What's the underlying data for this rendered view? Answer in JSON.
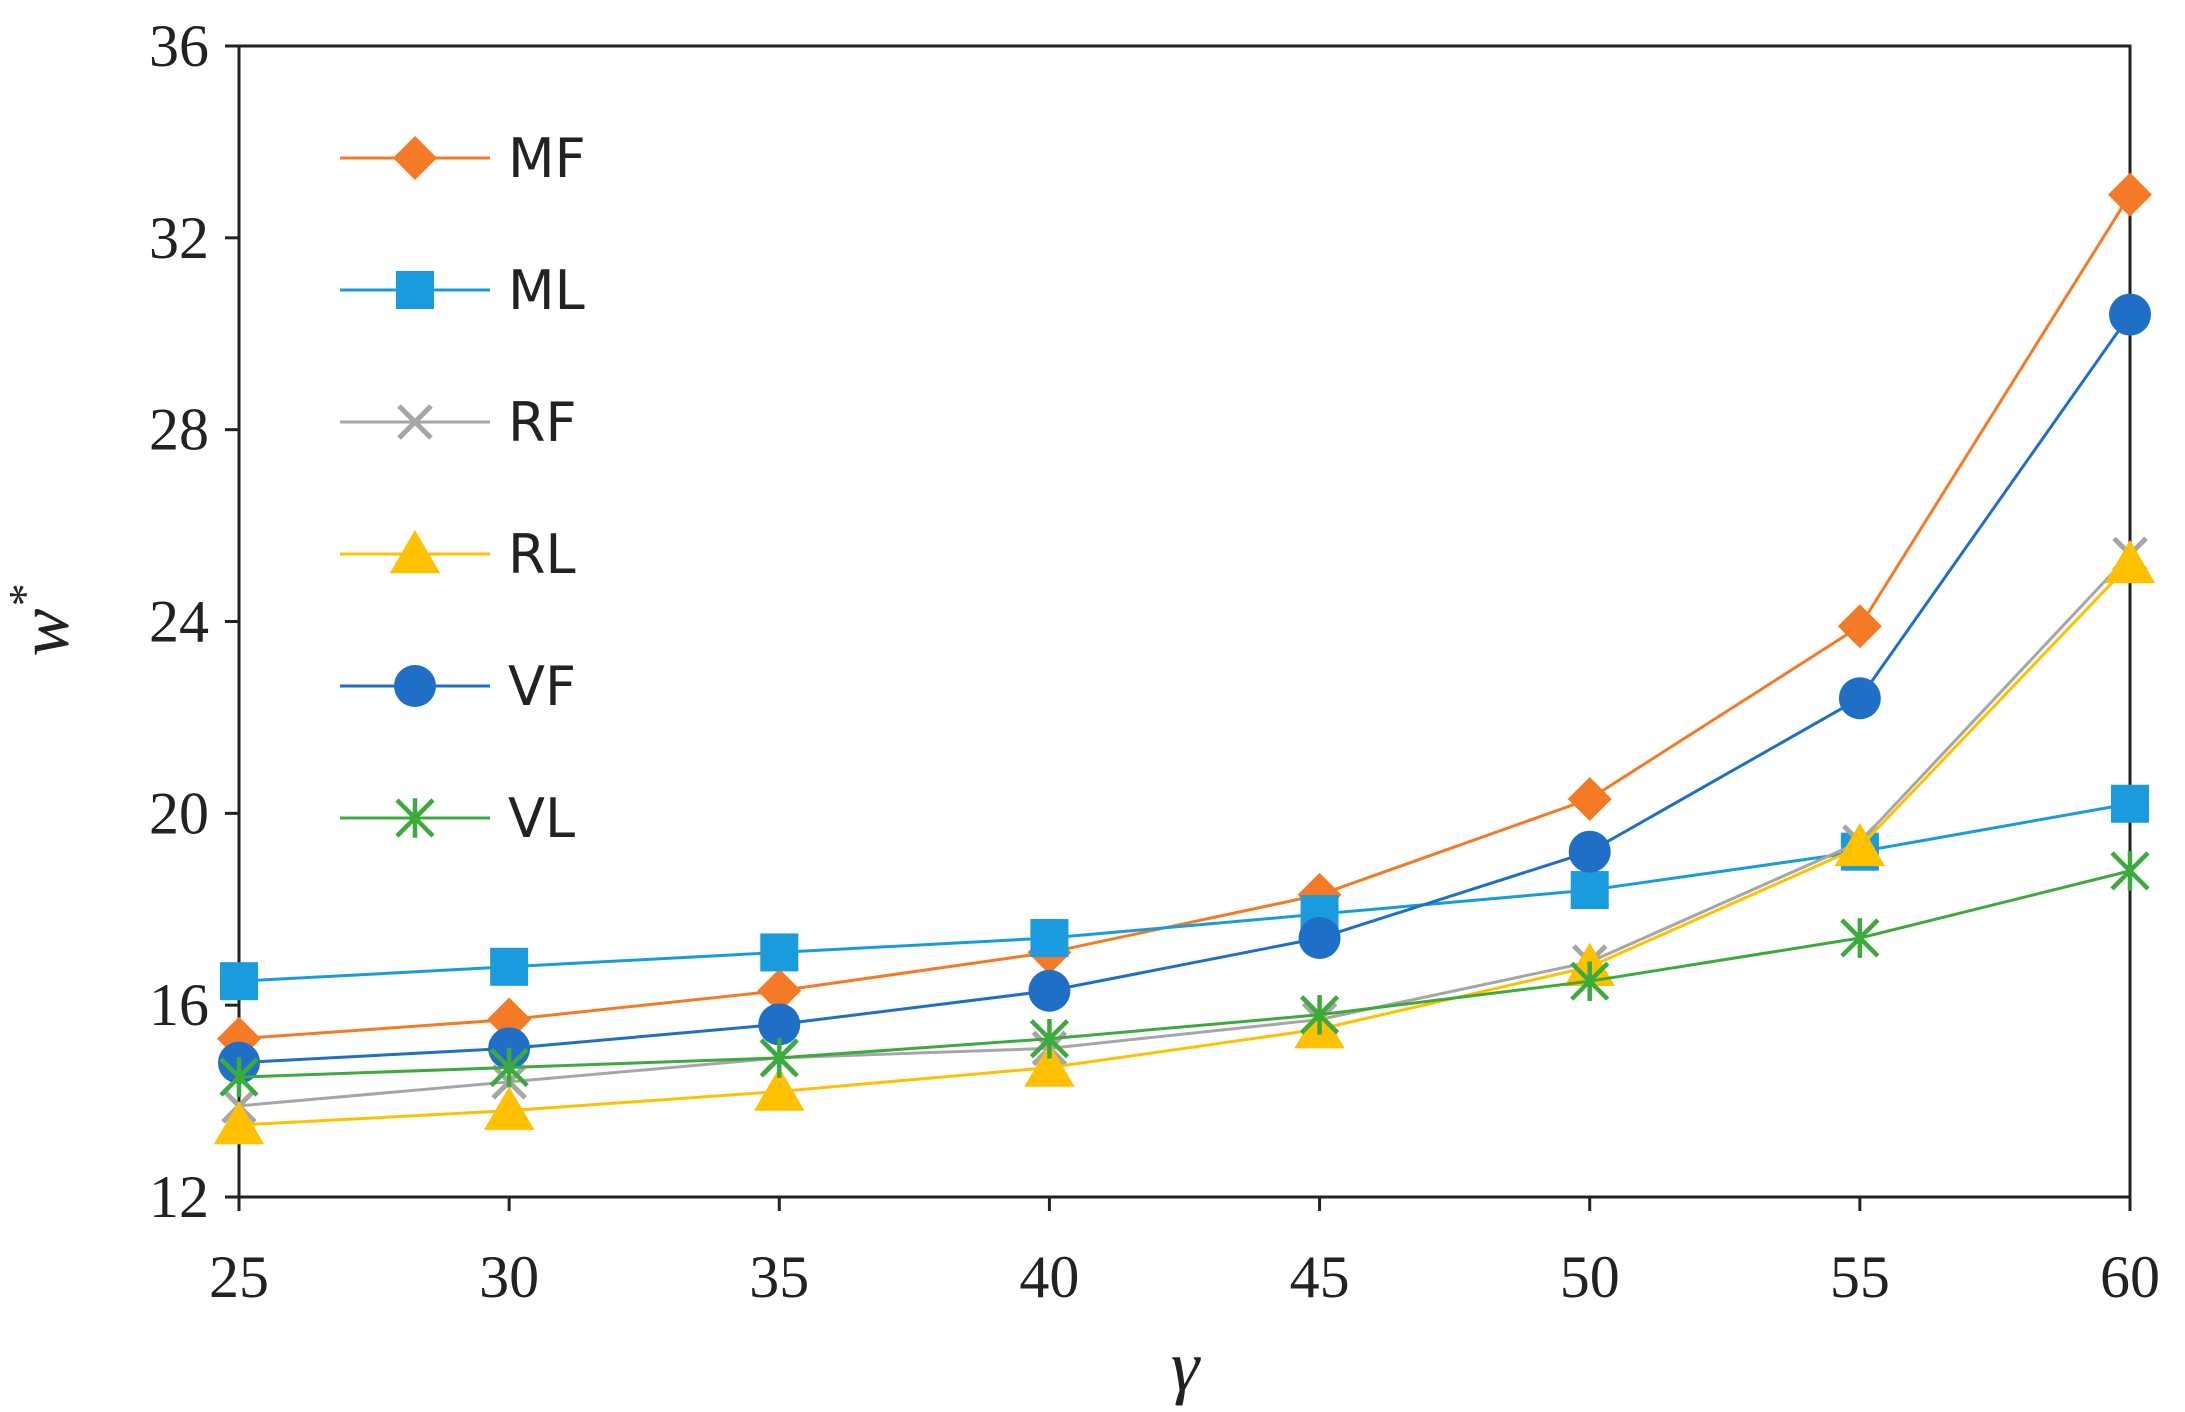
{
  "chart_data": {
    "type": "line",
    "title": "",
    "xlabel": "γ",
    "ylabel": "w",
    "ylabel_superscript": "*",
    "x": [
      25,
      30,
      35,
      40,
      45,
      50,
      55,
      60
    ],
    "xlim": [
      25,
      60
    ],
    "ylim": [
      12,
      36
    ],
    "yticks": [
      12,
      16,
      20,
      24,
      28,
      32,
      36
    ],
    "grid": false,
    "legend_position": "top-left",
    "series": [
      {
        "name": "MF",
        "color": "#F47A25",
        "marker": "diamond",
        "values": [
          15.3,
          15.7,
          16.3,
          17.1,
          18.3,
          20.3,
          23.9,
          32.9
        ]
      },
      {
        "name": "ML",
        "color": "#1A9BDD",
        "marker": "square",
        "values": [
          16.5,
          16.8,
          17.1,
          17.4,
          17.9,
          18.4,
          19.2,
          20.2
        ]
      },
      {
        "name": "RF",
        "color": "#A6A6A6",
        "marker": "x",
        "values": [
          13.9,
          14.4,
          14.9,
          15.1,
          15.7,
          16.9,
          19.4,
          25.4
        ]
      },
      {
        "name": "RL",
        "color": "#FFC000",
        "marker": "triangle",
        "values": [
          13.5,
          13.8,
          14.2,
          14.7,
          15.5,
          16.8,
          19.3,
          25.2
        ]
      },
      {
        "name": "VF",
        "color": "#1F6FC6",
        "marker": "circle",
        "values": [
          14.8,
          15.1,
          15.6,
          16.3,
          17.4,
          19.2,
          22.4,
          30.4
        ]
      },
      {
        "name": "VL",
        "color": "#3DAA3D",
        "marker": "asterisk",
        "values": [
          14.5,
          14.7,
          14.9,
          15.3,
          15.8,
          16.5,
          17.4,
          18.8
        ]
      }
    ]
  }
}
